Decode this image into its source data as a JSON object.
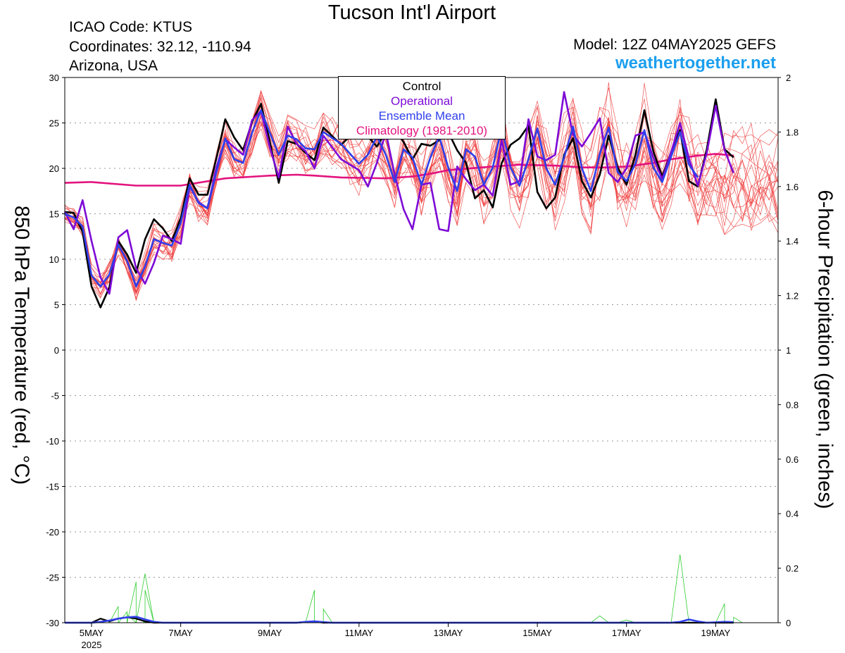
{
  "header": {
    "title": "Tucson Int'l Airport",
    "icao": "ICAO Code: KTUS",
    "coordinates": "Coordinates: 32.12, -110.94",
    "region": "Arizona, USA",
    "model": "Model: 12Z 04MAY2025 GEFS",
    "site": "weathertogether.net"
  },
  "legend": {
    "control": "Control",
    "operational": "Operational",
    "ensemble_mean": "Ensemble Mean",
    "climatology": "Climatology (1981-2010)"
  },
  "colors": {
    "members": "#ee3b3b",
    "control": "#000000",
    "operational": "#7d0ad6",
    "ensemble_mean": "#2f3fea",
    "climatology": "#e3137f",
    "precip_members": "#2ecc2e",
    "site": "#1c9fef"
  },
  "chart_data": {
    "type": "line",
    "title": "Tucson Int'l Airport",
    "ylabel": "850 hPa Temperature (red, °C)",
    "y2label": "6-hour Precipitation (green, inches)",
    "x_unit": "days since 4 May 2025 12Z",
    "xlim": [
      0.4,
      16.4
    ],
    "ylim": [
      -30,
      30
    ],
    "y2lim": [
      0,
      2
    ],
    "yticks": [
      30,
      25,
      20,
      15,
      10,
      5,
      0,
      -5,
      -10,
      -15,
      -20,
      -25,
      -30
    ],
    "y2ticks": [
      "2",
      "1.8",
      "1.6",
      "1.4",
      "1.2",
      "1",
      "0.8",
      "0.6",
      "0.4",
      "0.2",
      "0"
    ],
    "xticks": [
      {
        "x": 1,
        "label": "5MAY",
        "sub": "2025"
      },
      {
        "x": 3,
        "label": "7MAY"
      },
      {
        "x": 5,
        "label": "9MAY"
      },
      {
        "x": 7,
        "label": "11MAY"
      },
      {
        "x": 9,
        "label": "13MAY"
      },
      {
        "x": 11,
        "label": "15MAY"
      },
      {
        "x": 13,
        "label": "17MAY"
      },
      {
        "x": 15,
        "label": "19MAY"
      }
    ],
    "grid": "horizontal dotted",
    "legend_position": "top-center",
    "series": [
      {
        "name": "Control",
        "axis": "left",
        "points": [
          [
            0.4,
            15.2
          ],
          [
            0.6,
            15.1
          ],
          [
            0.8,
            13.0
          ],
          [
            1.0,
            7.0
          ],
          [
            1.2,
            4.7
          ],
          [
            1.4,
            6.9
          ],
          [
            1.6,
            12.0
          ],
          [
            1.8,
            10.5
          ],
          [
            2.0,
            8.5
          ],
          [
            2.2,
            12.2
          ],
          [
            2.4,
            14.4
          ],
          [
            2.6,
            13.4
          ],
          [
            2.8,
            12.0
          ],
          [
            3.0,
            14.5
          ],
          [
            3.2,
            18.9
          ],
          [
            3.4,
            17.1
          ],
          [
            3.6,
            17.1
          ],
          [
            3.8,
            21.1
          ],
          [
            4.0,
            25.4
          ],
          [
            4.2,
            23.4
          ],
          [
            4.4,
            22.0
          ],
          [
            4.6,
            25.1
          ],
          [
            4.8,
            27.1
          ],
          [
            5.0,
            22.9
          ],
          [
            5.2,
            18.4
          ],
          [
            5.4,
            23.0
          ],
          [
            5.6,
            22.7
          ],
          [
            5.8,
            21.7
          ],
          [
            6.0,
            20.9
          ],
          [
            6.2,
            24.5
          ],
          [
            6.6,
            22.6
          ],
          [
            7.0,
            24.5
          ],
          [
            7.2,
            23.5
          ],
          [
            7.4,
            22.4
          ],
          [
            7.6,
            24.0
          ],
          [
            7.8,
            24.3
          ],
          [
            8.0,
            22.9
          ],
          [
            8.2,
            21.0
          ],
          [
            8.4,
            22.7
          ],
          [
            8.6,
            22.5
          ],
          [
            8.8,
            23.1
          ],
          [
            9.0,
            24.0
          ],
          [
            9.2,
            22.0
          ],
          [
            9.4,
            20.6
          ],
          [
            9.6,
            16.7
          ],
          [
            9.8,
            17.6
          ],
          [
            10.0,
            15.7
          ],
          [
            10.2,
            20.6
          ],
          [
            10.4,
            22.6
          ],
          [
            10.6,
            23.3
          ],
          [
            10.8,
            24.7
          ],
          [
            11.0,
            17.4
          ],
          [
            11.2,
            15.6
          ],
          [
            11.4,
            16.8
          ],
          [
            11.6,
            21.5
          ],
          [
            11.8,
            23.3
          ],
          [
            12.0,
            18.6
          ],
          [
            12.2,
            16.8
          ],
          [
            12.4,
            19.3
          ],
          [
            12.6,
            23.6
          ],
          [
            12.8,
            20.1
          ],
          [
            13.0,
            18.2
          ],
          [
            13.2,
            21.5
          ],
          [
            13.4,
            26.4
          ],
          [
            13.6,
            21.9
          ],
          [
            13.8,
            19.1
          ],
          [
            14.0,
            21.8
          ],
          [
            14.2,
            24.2
          ],
          [
            14.4,
            18.6
          ],
          [
            14.6,
            18.0
          ],
          [
            14.8,
            22.1
          ],
          [
            15.0,
            27.6
          ],
          [
            15.2,
            22.1
          ],
          [
            15.4,
            21.2
          ]
        ]
      },
      {
        "name": "Operational",
        "axis": "left",
        "points": [
          [
            0.4,
            15.2
          ],
          [
            0.6,
            13.3
          ],
          [
            0.8,
            16.5
          ],
          [
            1.0,
            12.0
          ],
          [
            1.2,
            8.0
          ],
          [
            1.4,
            6.2
          ],
          [
            1.6,
            12.4
          ],
          [
            1.8,
            13.2
          ],
          [
            2.0,
            9.0
          ],
          [
            2.2,
            7.3
          ],
          [
            2.4,
            9.6
          ],
          [
            2.6,
            12.6
          ],
          [
            2.8,
            12.2
          ],
          [
            3.0,
            11.7
          ],
          [
            3.2,
            18.0
          ],
          [
            3.4,
            16.3
          ],
          [
            3.6,
            15.6
          ],
          [
            3.8,
            20.1
          ],
          [
            4.0,
            23.2
          ],
          [
            4.2,
            22.3
          ],
          [
            4.4,
            21.5
          ],
          [
            4.6,
            25.3
          ],
          [
            4.8,
            26.3
          ],
          [
            5.0,
            22.3
          ],
          [
            5.2,
            19.0
          ],
          [
            5.4,
            24.6
          ],
          [
            5.6,
            22.7
          ],
          [
            5.8,
            21.9
          ],
          [
            6.0,
            20.0
          ],
          [
            6.2,
            23.6
          ],
          [
            6.6,
            21.0
          ],
          [
            7.0,
            19.8
          ],
          [
            7.2,
            18.0
          ],
          [
            7.4,
            20.6
          ],
          [
            7.6,
            24.0
          ],
          [
            7.8,
            19.3
          ],
          [
            8.0,
            15.5
          ],
          [
            8.2,
            13.3
          ],
          [
            8.4,
            18.2
          ],
          [
            8.6,
            18.4
          ],
          [
            8.8,
            13.3
          ],
          [
            9.0,
            13.1
          ],
          [
            9.2,
            20.2
          ],
          [
            9.4,
            18.8
          ],
          [
            9.6,
            17.6
          ],
          [
            9.8,
            18.2
          ],
          [
            10.0,
            17.0
          ],
          [
            10.2,
            23.1
          ],
          [
            10.4,
            18.2
          ],
          [
            10.6,
            18.6
          ],
          [
            10.8,
            25.4
          ],
          [
            11.0,
            21.3
          ],
          [
            11.2,
            20.9
          ],
          [
            11.4,
            21.5
          ],
          [
            11.6,
            28.4
          ],
          [
            11.8,
            23.7
          ],
          [
            12.0,
            22.4
          ],
          [
            12.2,
            23.9
          ],
          [
            12.4,
            25.5
          ],
          [
            12.6,
            19.5
          ],
          [
            12.8,
            18.5
          ],
          [
            13.0,
            20.0
          ],
          [
            13.2,
            23.6
          ],
          [
            13.4,
            24.0
          ],
          [
            13.6,
            21.2
          ],
          [
            13.8,
            18.8
          ],
          [
            14.0,
            21.8
          ],
          [
            14.2,
            25.0
          ],
          [
            14.4,
            21.1
          ],
          [
            14.6,
            18.1
          ],
          [
            14.8,
            21.7
          ],
          [
            15.0,
            26.9
          ],
          [
            15.2,
            22.0
          ],
          [
            15.4,
            19.5
          ]
        ]
      },
      {
        "name": "Ensemble Mean",
        "axis": "left",
        "points": [
          [
            0.4,
            15.0
          ],
          [
            0.6,
            14.6
          ],
          [
            0.8,
            13.6
          ],
          [
            1.0,
            8.2
          ],
          [
            1.2,
            7.0
          ],
          [
            1.4,
            8.3
          ],
          [
            1.6,
            11.6
          ],
          [
            1.8,
            9.8
          ],
          [
            2.0,
            7.0
          ],
          [
            2.2,
            9.2
          ],
          [
            2.4,
            12.2
          ],
          [
            2.6,
            11.8
          ],
          [
            2.8,
            11.5
          ],
          [
            3.0,
            14.0
          ],
          [
            3.2,
            18.2
          ],
          [
            3.4,
            16.2
          ],
          [
            3.6,
            15.6
          ],
          [
            3.8,
            19.6
          ],
          [
            4.0,
            23.3
          ],
          [
            4.2,
            21.0
          ],
          [
            4.4,
            20.6
          ],
          [
            4.6,
            23.9
          ],
          [
            4.8,
            26.4
          ],
          [
            5.0,
            23.9
          ],
          [
            5.2,
            21.5
          ],
          [
            5.4,
            23.6
          ],
          [
            5.6,
            23.2
          ],
          [
            5.8,
            22.2
          ],
          [
            6.0,
            22.1
          ],
          [
            6.2,
            24.0
          ],
          [
            6.6,
            22.7
          ],
          [
            7.0,
            20.5
          ],
          [
            7.2,
            21.5
          ],
          [
            7.4,
            23.5
          ],
          [
            7.6,
            21.5
          ],
          [
            7.8,
            18.5
          ],
          [
            8.0,
            22.1
          ],
          [
            8.2,
            21.2
          ],
          [
            8.4,
            18.2
          ],
          [
            8.6,
            21.2
          ],
          [
            8.8,
            23.5
          ],
          [
            9.0,
            20.1
          ],
          [
            9.2,
            17.5
          ],
          [
            9.4,
            22.1
          ],
          [
            9.6,
            21.3
          ],
          [
            9.8,
            18.2
          ],
          [
            10.0,
            20.1
          ],
          [
            10.2,
            24.5
          ],
          [
            10.4,
            20.1
          ],
          [
            10.6,
            18.1
          ],
          [
            10.8,
            21.0
          ],
          [
            11.0,
            24.4
          ],
          [
            11.2,
            20.0
          ],
          [
            11.4,
            18.2
          ],
          [
            11.6,
            21.2
          ],
          [
            11.8,
            24.6
          ],
          [
            12.0,
            20.0
          ],
          [
            12.2,
            17.5
          ],
          [
            12.4,
            21.6
          ],
          [
            12.6,
            24.5
          ],
          [
            12.8,
            19.6
          ],
          [
            13.0,
            18.6
          ],
          [
            13.2,
            20.5
          ],
          [
            13.4,
            24.2
          ],
          [
            13.6,
            20.1
          ],
          [
            13.8,
            18.5
          ],
          [
            14.0,
            21.3
          ],
          [
            14.2,
            24.0
          ],
          [
            14.4,
            20.4
          ],
          [
            14.6,
            19.0
          ]
        ]
      },
      {
        "name": "Climatology (1981-2010)",
        "axis": "left",
        "points": [
          [
            0.4,
            18.4
          ],
          [
            1.0,
            18.5
          ],
          [
            2.0,
            18.1
          ],
          [
            3.0,
            18.1
          ],
          [
            4.0,
            18.9
          ],
          [
            5.0,
            19.2
          ],
          [
            5.6,
            19.3
          ],
          [
            6.0,
            19.2
          ],
          [
            6.6,
            19.0
          ],
          [
            7.6,
            18.9
          ],
          [
            8.2,
            19.1
          ],
          [
            8.6,
            19.4
          ],
          [
            9.0,
            19.8
          ],
          [
            10.0,
            20.2
          ],
          [
            10.6,
            20.4
          ],
          [
            11.4,
            20.3
          ],
          [
            12.0,
            20.1
          ],
          [
            12.6,
            20.1
          ],
          [
            13.0,
            20.2
          ],
          [
            13.6,
            20.6
          ],
          [
            14.0,
            21.0
          ],
          [
            14.6,
            21.4
          ],
          [
            15.0,
            21.6
          ],
          [
            15.4,
            21.4
          ]
        ]
      },
      {
        "name": "Control",
        "axis": "right",
        "points": [
          [
            0.4,
            0
          ],
          [
            0.8,
            0
          ],
          [
            1.0,
            0
          ],
          [
            1.2,
            0.015
          ],
          [
            1.4,
            0.005
          ],
          [
            1.6,
            0.015
          ],
          [
            1.8,
            0.02
          ],
          [
            2.0,
            0.015
          ],
          [
            2.2,
            0.005
          ],
          [
            2.4,
            0
          ],
          [
            3.0,
            0
          ],
          [
            5.6,
            0
          ],
          [
            6.0,
            0.005
          ],
          [
            6.2,
            0
          ],
          [
            15.4,
            0
          ]
        ]
      },
      {
        "name": "Ensemble Mean",
        "axis": "right",
        "points": [
          [
            0.4,
            0
          ],
          [
            1.0,
            0
          ],
          [
            1.2,
            0.003
          ],
          [
            1.4,
            0.008
          ],
          [
            1.6,
            0.015
          ],
          [
            1.8,
            0.02
          ],
          [
            2.0,
            0.022
          ],
          [
            2.2,
            0.012
          ],
          [
            2.4,
            0.003
          ],
          [
            2.6,
            0
          ],
          [
            5.6,
            0
          ],
          [
            5.8,
            0.003
          ],
          [
            6.0,
            0.005
          ],
          [
            6.2,
            0.002
          ],
          [
            6.4,
            0
          ],
          [
            14.0,
            0
          ],
          [
            14.2,
            0.003
          ],
          [
            14.4,
            0.012
          ],
          [
            14.6,
            0.005
          ],
          [
            14.8,
            0
          ],
          [
            15.2,
            0.003
          ],
          [
            15.4,
            0.002
          ]
        ]
      }
    ]
  }
}
